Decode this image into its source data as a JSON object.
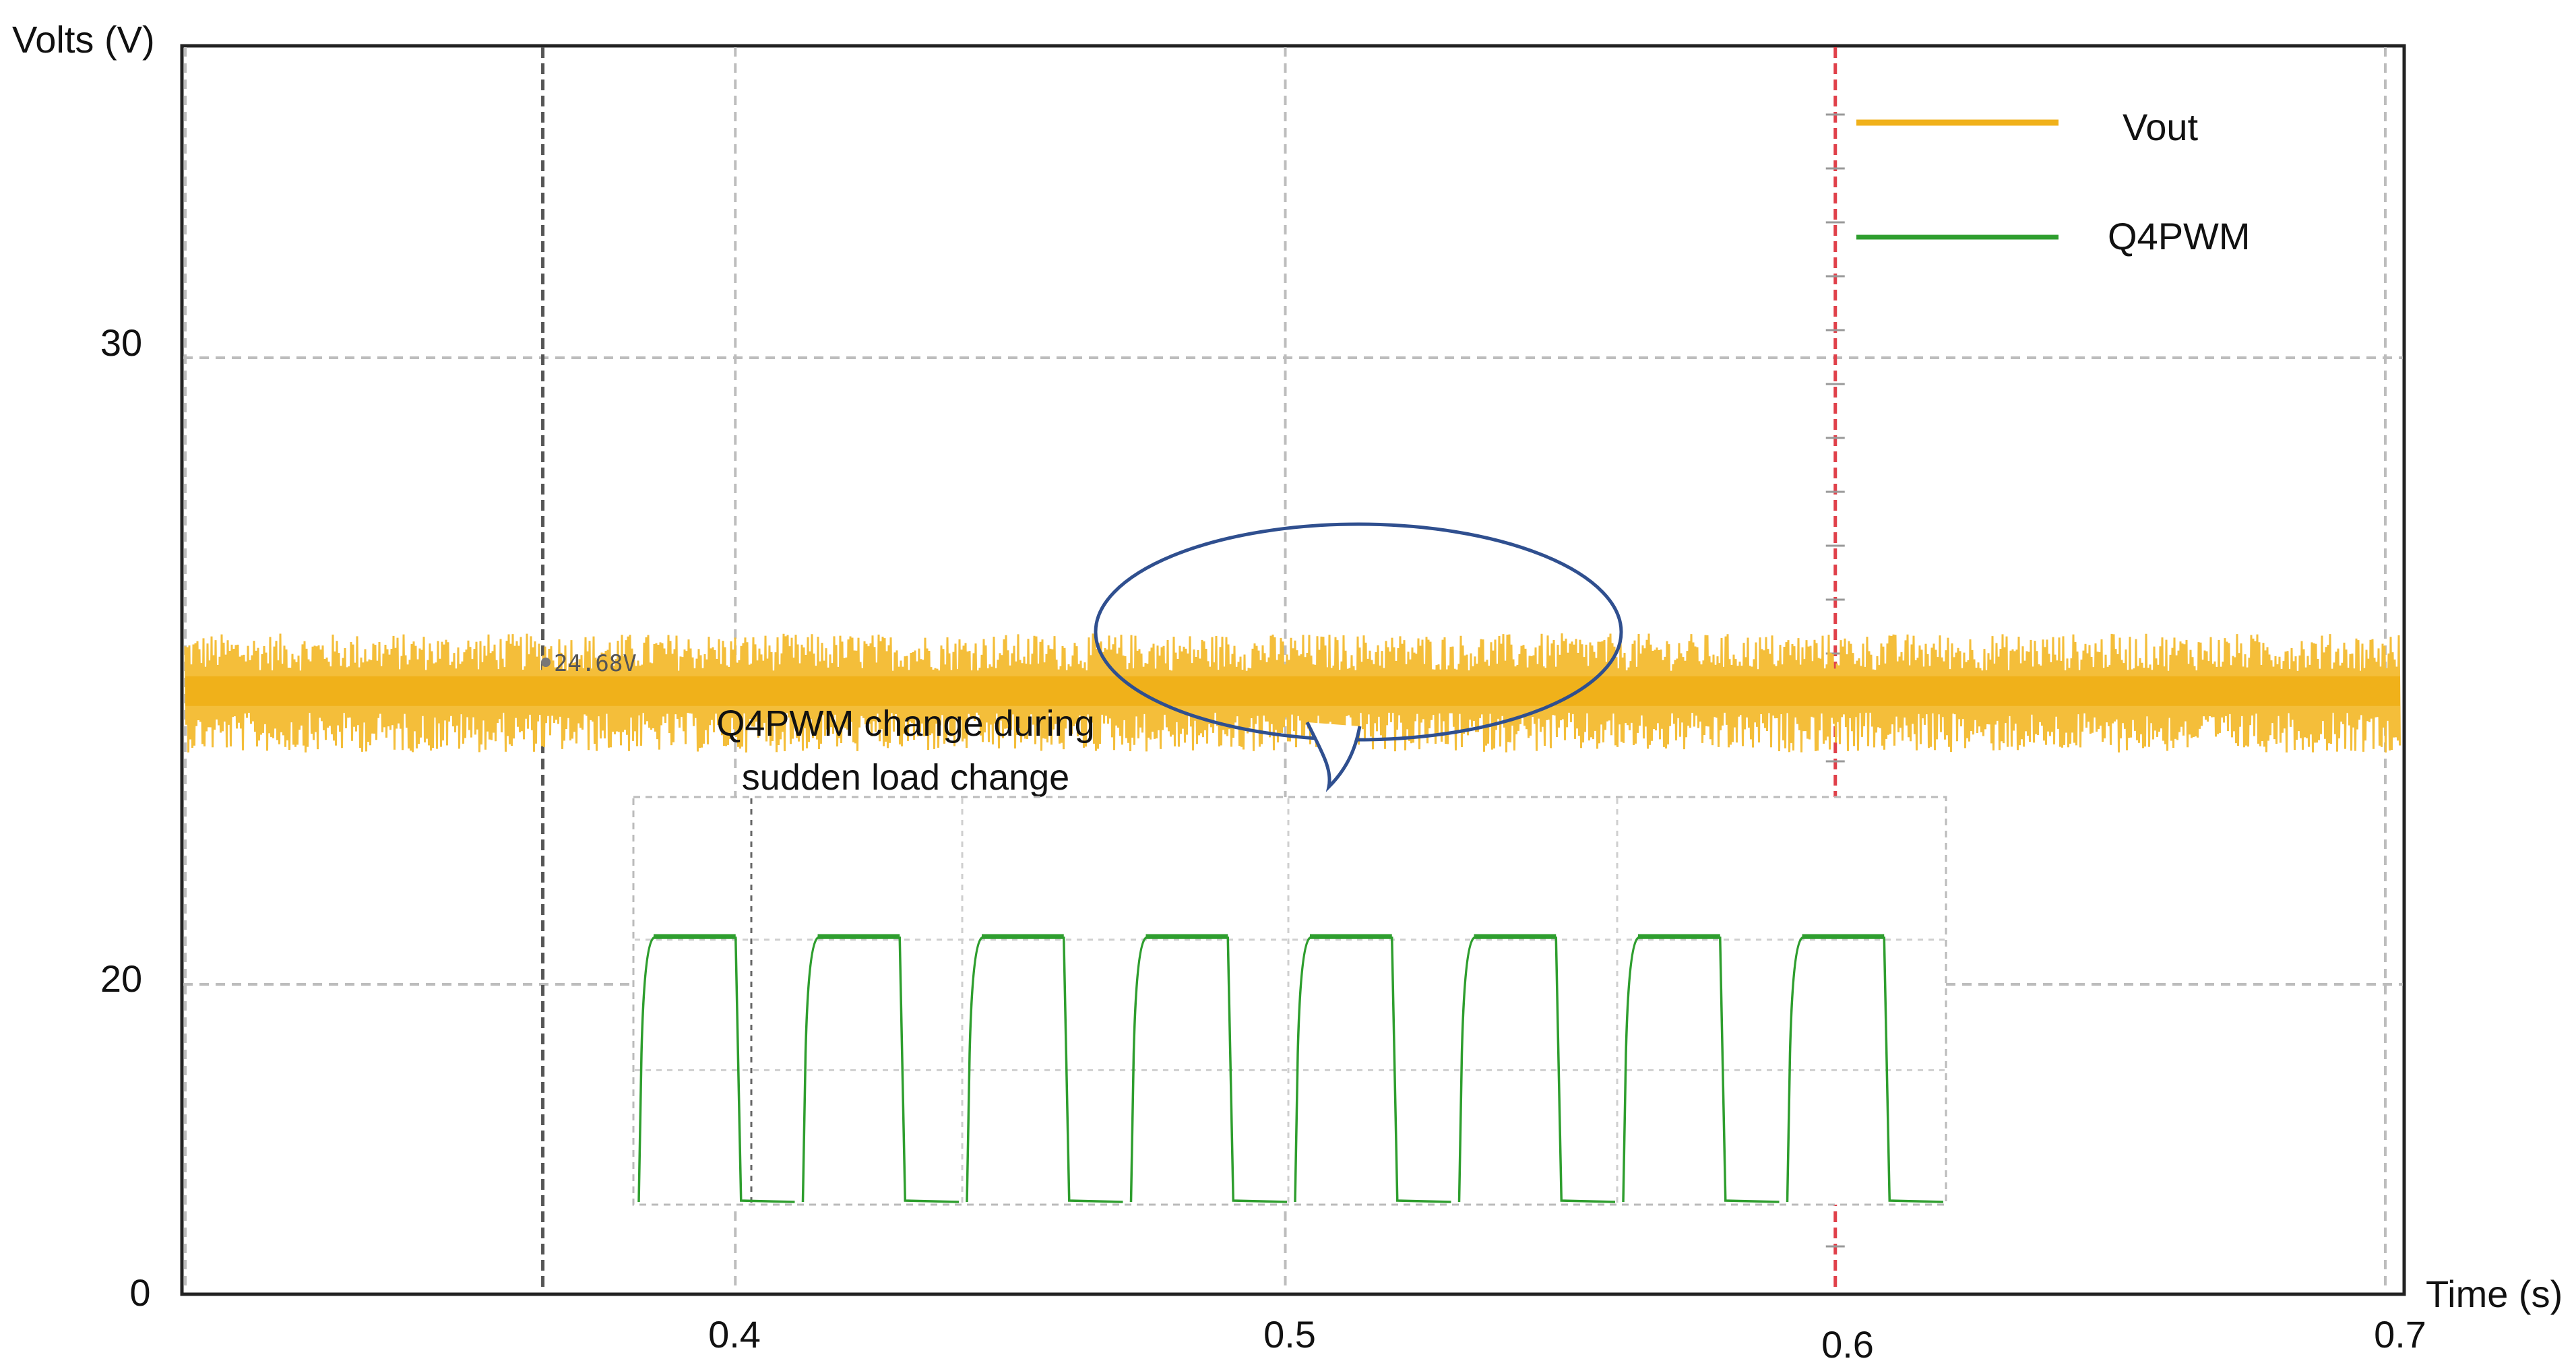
{
  "chart_data": {
    "type": "line",
    "ylabel": "Volts (V)",
    "xlabel": "Time (s)",
    "x_ticks": [
      "0.4",
      "0.5",
      "0.6",
      "0.7"
    ],
    "y_ticks": [
      "0",
      "20",
      "30"
    ],
    "xlim": [
      0.3,
      0.7
    ],
    "ylim": [
      0,
      39
    ],
    "grid": true,
    "legend_position": "top-right",
    "series": [
      {
        "name": "Vout",
        "color": "#f0b11a",
        "mean_value": 24.68,
        "noise_band": [
          23.7,
          25.6
        ],
        "x_range": [
          0.3,
          0.7
        ]
      },
      {
        "name": "Q4PWM",
        "color": "#2e9e2e",
        "pulse_count": 8
      }
    ],
    "cursors": [
      {
        "x": 0.365,
        "color": "#555555",
        "readout": "24.68V"
      },
      {
        "x": 0.6,
        "color": "#e0404a"
      }
    ],
    "annotation": "Q4PWM change during sudden load change"
  }
}
